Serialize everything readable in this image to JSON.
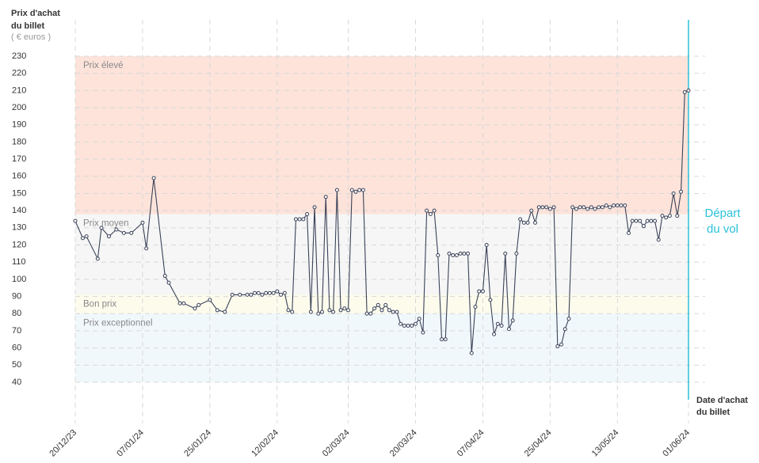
{
  "chart_data": {
    "type": "line",
    "title": [
      "Prix d'achat",
      "du billet"
    ],
    "unit": "( € euros )",
    "x_label": [
      "Date d'achat",
      "du billet"
    ],
    "annotation": {
      "lines": [
        "Départ",
        "du vol"
      ],
      "x": "01/06/24",
      "color": "#29c2d8"
    },
    "color": "#3a4258",
    "grid": true,
    "ylim": [
      40,
      230
    ],
    "yticks": [
      40,
      50,
      60,
      70,
      80,
      90,
      100,
      110,
      120,
      130,
      140,
      150,
      160,
      170,
      180,
      190,
      200,
      210,
      220,
      230
    ],
    "xlim": [
      "20/12/23",
      "01/06/24"
    ],
    "xticks": [
      "20/12/23",
      "07/01/24",
      "25/01/24",
      "12/02/24",
      "02/03/24",
      "20/03/24",
      "07/04/24",
      "25/04/24",
      "13/05/24",
      "01/06/24"
    ],
    "bands": [
      {
        "label": "Prix élevé",
        "from": 138,
        "to": 230,
        "color": "#fde3da"
      },
      {
        "label": "Prix moyen",
        "from": 91,
        "to": 138,
        "color": "#f6f6f6"
      },
      {
        "label": "Bon prix",
        "from": 80,
        "to": 91,
        "color": "#fcfbec"
      },
      {
        "label": "Prix exceptionnel",
        "from": 40,
        "to": 80,
        "color": "#f1f8fc"
      }
    ],
    "x": [
      "20/12/23",
      "22/12/23",
      "23/12/23",
      "26/12/23",
      "27/12/23",
      "29/12/23",
      "31/12/23",
      "02/01/24",
      "04/01/24",
      "07/01/24",
      "08/01/24",
      "10/01/24",
      "13/01/24",
      "14/01/24",
      "17/01/24",
      "18/01/24",
      "21/01/24",
      "22/01/24",
      "25/01/24",
      "27/01/24",
      "29/01/24",
      "31/01/24",
      "02/02/24",
      "04/02/24",
      "05/02/24",
      "06/02/24",
      "07/02/24",
      "08/02/24",
      "09/02/24",
      "10/02/24",
      "11/02/24",
      "12/02/24",
      "13/02/24",
      "14/02/24",
      "15/02/24",
      "16/02/24",
      "17/02/24",
      "18/02/24",
      "19/02/24",
      "20/02/24",
      "21/02/24",
      "22/02/24",
      "23/02/24",
      "24/02/24",
      "25/02/24",
      "26/02/24",
      "27/02/24",
      "28/02/24",
      "29/02/24",
      "01/03/24",
      "02/03/24",
      "03/03/24",
      "04/03/24",
      "05/03/24",
      "06/03/24",
      "07/03/24",
      "08/03/24",
      "09/03/24",
      "10/03/24",
      "11/03/24",
      "12/03/24",
      "13/03/24",
      "14/03/24",
      "15/03/24",
      "16/03/24",
      "17/03/24",
      "18/03/24",
      "19/03/24",
      "20/03/24",
      "21/03/24",
      "22/03/24",
      "23/03/24",
      "24/03/24",
      "25/03/24",
      "26/03/24",
      "27/03/24",
      "28/03/24",
      "29/03/24",
      "30/03/24",
      "31/03/24",
      "01/04/24",
      "02/04/24",
      "03/04/24",
      "04/04/24",
      "05/04/24",
      "06/04/24",
      "07/04/24",
      "08/04/24",
      "09/04/24",
      "10/04/24",
      "11/04/24",
      "12/04/24",
      "13/04/24",
      "14/04/24",
      "15/04/24",
      "16/04/24",
      "17/04/24",
      "18/04/24",
      "19/04/24",
      "20/04/24",
      "21/04/24",
      "22/04/24",
      "23/04/24",
      "24/04/24",
      "25/04/24",
      "26/04/24",
      "27/04/24",
      "28/04/24",
      "29/04/24",
      "30/04/24",
      "01/05/24",
      "02/05/24",
      "03/05/24",
      "04/05/24",
      "05/05/24",
      "06/05/24",
      "07/05/24",
      "08/05/24",
      "09/05/24",
      "10/05/24",
      "11/05/24",
      "12/05/24",
      "13/05/24",
      "14/05/24",
      "15/05/24",
      "16/05/24",
      "17/05/24",
      "18/05/24",
      "19/05/24",
      "20/05/24",
      "21/05/24",
      "22/05/24",
      "23/05/24",
      "24/05/24",
      "25/05/24",
      "26/05/24",
      "27/05/24",
      "28/05/24",
      "29/05/24",
      "30/05/24",
      "31/05/24",
      "01/06/24"
    ],
    "values": [
      134,
      124,
      125,
      112,
      130,
      125,
      129,
      127,
      127,
      133,
      118,
      159,
      102,
      98,
      86,
      86,
      83,
      85,
      88,
      82,
      81,
      91,
      91,
      91,
      91,
      92,
      92,
      91,
      92,
      92,
      92,
      93,
      91,
      92,
      82,
      81,
      135,
      135,
      135,
      138,
      81,
      142,
      80,
      81,
      148,
      82,
      81,
      152,
      82,
      83,
      82,
      152,
      151,
      152,
      152,
      80,
      80,
      83,
      85,
      82,
      85,
      82,
      81,
      81,
      74,
      73,
      73,
      73,
      74,
      77,
      69,
      140,
      138,
      140,
      114,
      65,
      65,
      115,
      114,
      114,
      115,
      115,
      115,
      57,
      84,
      93,
      93,
      120,
      88,
      68,
      74,
      73,
      115,
      71,
      76,
      115,
      135,
      133,
      133,
      140,
      133,
      142,
      142,
      142,
      141,
      142,
      61,
      62,
      71,
      77,
      142,
      141,
      142,
      142,
      141,
      142,
      141,
      142,
      142,
      143,
      142,
      143,
      143,
      143,
      143,
      127,
      134,
      134,
      134,
      131,
      134,
      134,
      134,
      123,
      137,
      136,
      137,
      150,
      137,
      151,
      209,
      210
    ]
  }
}
